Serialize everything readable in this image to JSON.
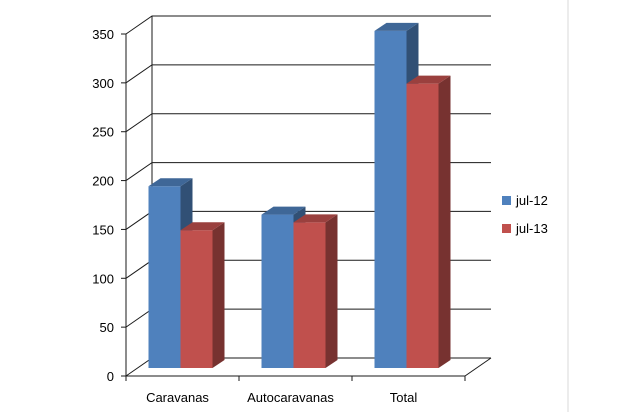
{
  "chart_data": {
    "type": "bar",
    "title": "",
    "xlabel": "",
    "ylabel": "",
    "categories": [
      "Caravanas",
      "Autocaravanas",
      "Total"
    ],
    "series": [
      {
        "name": "jul-12",
        "values": [
          186,
          157,
          345
        ],
        "color": "#4F81BD"
      },
      {
        "name": "jul-13",
        "values": [
          141,
          149,
          291
        ],
        "color": "#C0504D"
      }
    ],
    "ylim": [
      0,
      350
    ],
    "yticks": [
      0,
      50,
      100,
      150,
      200,
      250,
      300,
      350
    ],
    "grid": true,
    "legend_position": "right",
    "style": "3d-clustered-column"
  }
}
